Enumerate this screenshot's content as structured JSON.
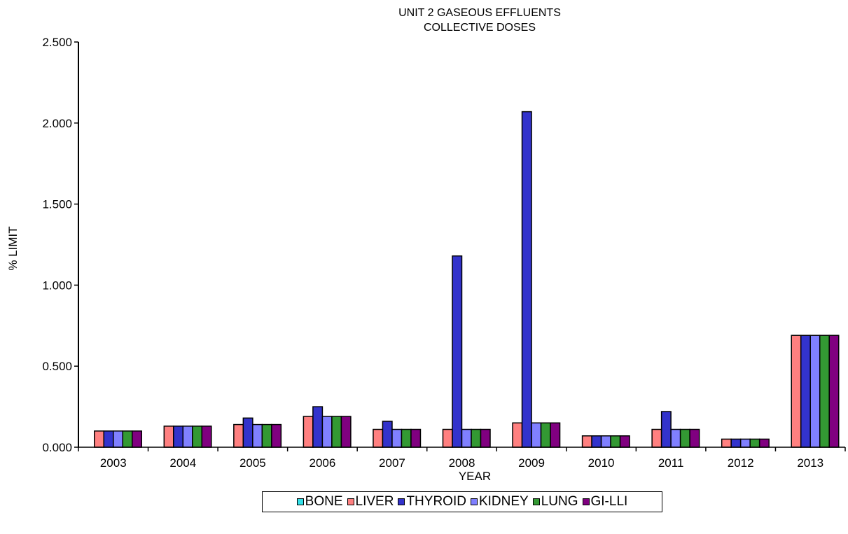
{
  "chart_data": {
    "type": "bar",
    "title_lines": [
      "UNIT 2 GASEOUS EFFLUENTS",
      "COLLECTIVE DOSES"
    ],
    "xlabel": "YEAR",
    "ylabel": "% LIMIT",
    "ylim": [
      0,
      2.5
    ],
    "yticks": [
      "0.000",
      "0.500",
      "1.000",
      "1.500",
      "2.000",
      "2.500"
    ],
    "ytick_values": [
      0,
      0.5,
      1.0,
      1.5,
      2.0,
      2.5
    ],
    "categories": [
      "2003",
      "2004",
      "2005",
      "2006",
      "2007",
      "2008",
      "2009",
      "2010",
      "2011",
      "2012",
      "2013"
    ],
    "legend_position": "bottom",
    "series": [
      {
        "name": "BONE",
        "color": "#33e0e8",
        "values": [
          0,
          0,
          0,
          0,
          0,
          0,
          0,
          0,
          0,
          0,
          0
        ]
      },
      {
        "name": "LIVER",
        "color": "#ff8080",
        "values": [
          0.1,
          0.13,
          0.14,
          0.19,
          0.11,
          0.11,
          0.15,
          0.07,
          0.11,
          0.05,
          0.69
        ]
      },
      {
        "name": "THYROID",
        "color": "#3333cc",
        "values": [
          0.1,
          0.13,
          0.18,
          0.25,
          0.16,
          1.18,
          2.07,
          0.07,
          0.22,
          0.05,
          0.69
        ]
      },
      {
        "name": "KIDNEY",
        "color": "#8080ff",
        "values": [
          0.1,
          0.13,
          0.14,
          0.19,
          0.11,
          0.11,
          0.15,
          0.07,
          0.11,
          0.05,
          0.69
        ]
      },
      {
        "name": "LUNG",
        "color": "#339933",
        "values": [
          0.1,
          0.13,
          0.14,
          0.19,
          0.11,
          0.11,
          0.15,
          0.07,
          0.11,
          0.05,
          0.69
        ]
      },
      {
        "name": "GI-LLI",
        "color": "#800080",
        "values": [
          0.1,
          0.13,
          0.14,
          0.19,
          0.11,
          0.11,
          0.15,
          0.07,
          0.11,
          0.05,
          0.69
        ]
      }
    ]
  }
}
